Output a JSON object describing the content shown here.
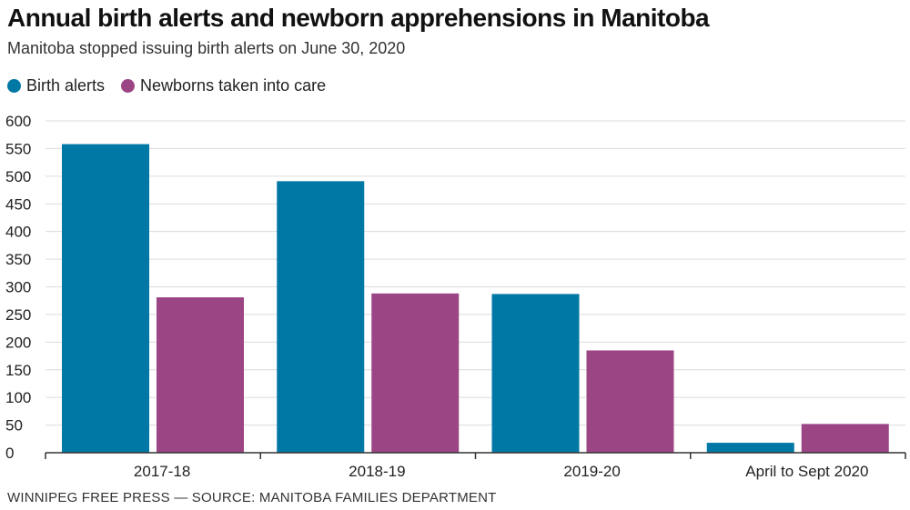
{
  "header": {
    "title": "Annual birth alerts and newborn apprehensions in Manitoba",
    "subtitle": "Manitoba stopped issuing birth alerts on June 30, 2020"
  },
  "legend": {
    "items": [
      {
        "label": "Birth alerts",
        "color": "#0078a5"
      },
      {
        "label": "Newborns taken into care",
        "color": "#9c4585"
      }
    ]
  },
  "footer": {
    "credit": "WINNIPEG FREE PRESS — SOURCE: MANITOBA FAMILIES DEPARTMENT"
  },
  "chart_data": {
    "type": "bar",
    "title": "Annual birth alerts and newborn apprehensions in Manitoba",
    "xlabel": "",
    "ylabel": "",
    "ylim": [
      0,
      600
    ],
    "yticks": [
      0,
      50,
      100,
      150,
      200,
      250,
      300,
      350,
      400,
      450,
      500,
      550,
      600
    ],
    "grid": true,
    "legend_position": "top-left",
    "categories": [
      "2017-18",
      "2018-19",
      "2019-20",
      "April to Sept 2020"
    ],
    "series": [
      {
        "name": "Birth alerts",
        "color": "#0078a5",
        "values": [
          558,
          491,
          287,
          18
        ]
      },
      {
        "name": "Newborns taken into care",
        "color": "#9c4585",
        "values": [
          281,
          288,
          185,
          52
        ]
      }
    ]
  }
}
